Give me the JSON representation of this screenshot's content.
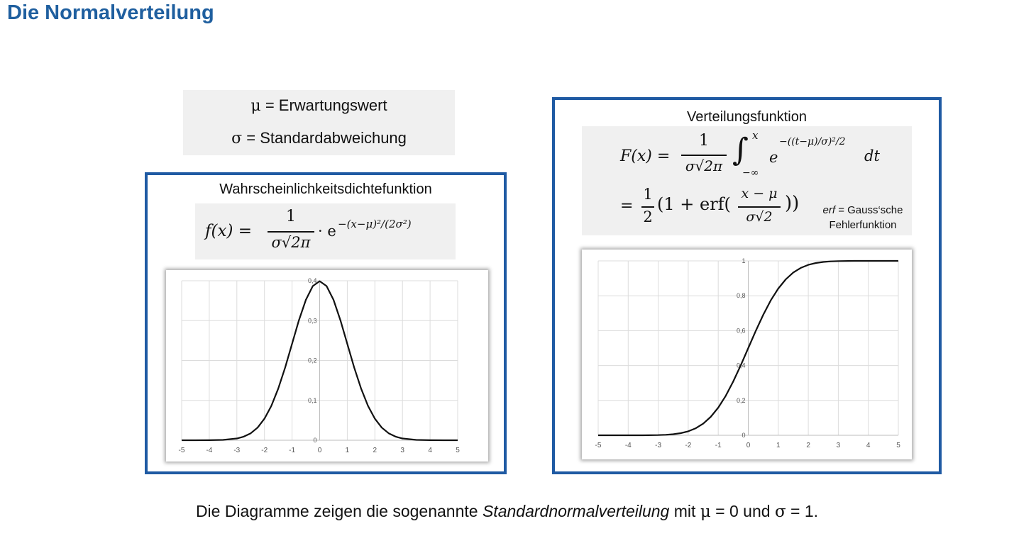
{
  "page": {
    "title": "Die Normalverteilung"
  },
  "legend": {
    "mu_symbol": "μ",
    "mu_text": "= Erwartungswert",
    "sigma_symbol": "σ",
    "sigma_text": "= Standardabweichung"
  },
  "density": {
    "title": "Wahrscheinlichkeitsdichtefunktion",
    "formula": {
      "lhs": "f(x) =",
      "numerator": "1",
      "denominator": "σ√2π",
      "tail": "· e",
      "exponent": "−(x−μ)²/(2σ²)"
    }
  },
  "cdf": {
    "title": "Verteilungsfunktion",
    "formula": {
      "lhs": "F(x) =",
      "numerator": "1",
      "denominator": "σ√2π",
      "integral": "∫",
      "upper": "x",
      "lower": "−∞",
      "e": "e",
      "exponent": "−((t−μ)/σ)²/2",
      "dt": "dt",
      "eq2": "=",
      "half_num": "1",
      "half_den": "2",
      "body": "(1 + erf(",
      "inner_num": "x − μ",
      "inner_den": "σ√2",
      "close": "))"
    },
    "note_line1_italic": "erf",
    "note_line1": "= Gauss‘sche",
    "note_line2": "Fehlerfunktion"
  },
  "chart_data": [
    {
      "type": "line",
      "title": "",
      "xlabel": "",
      "ylabel": "",
      "xlim": [
        -5,
        5
      ],
      "ylim": [
        0,
        0.4
      ],
      "x_ticks": [
        "-5",
        "-4",
        "-3",
        "-2",
        "-1",
        "0",
        "1",
        "2",
        "3",
        "4",
        "5"
      ],
      "y_ticks": [
        "0",
        "0,1",
        "0,2",
        "0,3",
        "0,4"
      ],
      "grid": true,
      "series": [
        {
          "color": "#111111",
          "x": [
            -5,
            -4.5,
            -4,
            -3.5,
            -3,
            -2.75,
            -2.5,
            -2.25,
            -2,
            -1.75,
            -1.5,
            -1.25,
            -1,
            -0.75,
            -0.5,
            -0.25,
            0,
            0.25,
            0.5,
            0.75,
            1,
            1.25,
            1.5,
            1.75,
            2,
            2.25,
            2.5,
            2.75,
            3,
            3.5,
            4,
            4.5,
            5
          ],
          "y": [
            0,
            0,
            0.0001,
            0.0009,
            0.0044,
            0.0091,
            0.0175,
            0.0317,
            0.054,
            0.0863,
            0.1295,
            0.1826,
            0.242,
            0.3011,
            0.3521,
            0.3867,
            0.3989,
            0.3867,
            0.3521,
            0.3011,
            0.242,
            0.1826,
            0.1295,
            0.0863,
            0.054,
            0.0317,
            0.0175,
            0.0091,
            0.0044,
            0.0009,
            0.0001,
            0,
            0
          ]
        }
      ]
    },
    {
      "type": "line",
      "title": "",
      "xlabel": "",
      "ylabel": "",
      "xlim": [
        -5,
        5
      ],
      "ylim": [
        0,
        1
      ],
      "x_ticks": [
        "-5",
        "-4",
        "-3",
        "-2",
        "-1",
        "0",
        "1",
        "2",
        "3",
        "4",
        "5"
      ],
      "y_ticks": [
        "0",
        "0,2",
        "0,4",
        "0,6",
        "0,8",
        "1"
      ],
      "grid": true,
      "series": [
        {
          "color": "#111111",
          "x": [
            -5,
            -4.5,
            -4,
            -3.5,
            -3,
            -2.75,
            -2.5,
            -2.25,
            -2,
            -1.75,
            -1.5,
            -1.25,
            -1,
            -0.75,
            -0.5,
            -0.25,
            0,
            0.25,
            0.5,
            0.75,
            1,
            1.25,
            1.5,
            1.75,
            2,
            2.25,
            2.5,
            2.75,
            3,
            3.5,
            4,
            4.5,
            5
          ],
          "y": [
            0,
            0,
            0,
            0.0002,
            0.0013,
            0.003,
            0.0062,
            0.0122,
            0.0228,
            0.0401,
            0.0668,
            0.1056,
            0.1587,
            0.2266,
            0.3085,
            0.4013,
            0.5,
            0.5987,
            0.6915,
            0.7734,
            0.8413,
            0.8944,
            0.9332,
            0.9599,
            0.9772,
            0.9878,
            0.9938,
            0.997,
            0.9987,
            0.9998,
            1,
            1,
            1
          ]
        }
      ]
    }
  ],
  "footer": {
    "before": "Die Diagramme zeigen die sogenannte",
    "italic": "Standardnormalverteilung",
    "mid": "mit",
    "mu": "μ",
    "mu_value": "= 0 und",
    "sigma": "σ",
    "sigma_value": "= 1."
  }
}
